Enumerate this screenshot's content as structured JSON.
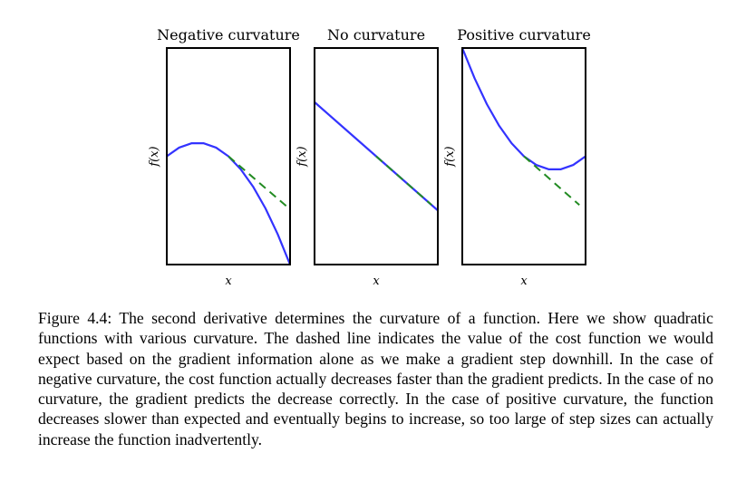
{
  "chart_data": [
    {
      "type": "line",
      "title": "Negative curvature",
      "xlabel": "x",
      "ylabel": "f(x)",
      "xlim": [
        0,
        1
      ],
      "ylim": [
        0,
        1
      ],
      "grid": false,
      "x": [
        0.0,
        0.1,
        0.2,
        0.3,
        0.4,
        0.5,
        0.6,
        0.7,
        0.8,
        0.9,
        1.0
      ],
      "series": [
        {
          "values": [
            0.5,
            0.54,
            0.56,
            0.56,
            0.54,
            0.5,
            0.44,
            0.36,
            0.26,
            0.14,
            0.0
          ],
          "color": "#3333ff",
          "style": "solid"
        },
        {
          "x": [
            0.5,
            0.97
          ],
          "values": [
            0.5,
            0.27
          ],
          "color": "#228b22",
          "style": "dashed"
        }
      ]
    },
    {
      "type": "line",
      "title": "No curvature",
      "xlabel": "x",
      "ylabel": "f(x)",
      "xlim": [
        0,
        1
      ],
      "ylim": [
        0,
        1
      ],
      "grid": false,
      "x": [
        0.0,
        1.0
      ],
      "series": [
        {
          "values": [
            0.75,
            0.25
          ],
          "color": "#3333ff",
          "style": "solid"
        },
        {
          "x": [
            0.5,
            0.95
          ],
          "values": [
            0.5,
            0.275
          ],
          "color": "#228b22",
          "style": "dashed"
        }
      ]
    },
    {
      "type": "line",
      "title": "Positive curvature",
      "xlabel": "x",
      "ylabel": "f(x)",
      "xlim": [
        0,
        1
      ],
      "ylim": [
        0,
        1
      ],
      "grid": false,
      "x": [
        0.0,
        0.1,
        0.2,
        0.3,
        0.4,
        0.5,
        0.6,
        0.7,
        0.8,
        0.9,
        1.0
      ],
      "series": [
        {
          "values": [
            1.0,
            0.86,
            0.74,
            0.64,
            0.56,
            0.5,
            0.46,
            0.44,
            0.44,
            0.46,
            0.5
          ],
          "color": "#3333ff",
          "style": "solid"
        },
        {
          "x": [
            0.5,
            0.95
          ],
          "values": [
            0.5,
            0.275
          ],
          "color": "#228b22",
          "style": "dashed"
        }
      ]
    }
  ],
  "caption": {
    "text": "Figure 4.4: The second derivative determines the curvature of a function. Here we show quadratic functions with various curvature. The dashed line indicates the value of the cost function we would expect based on the gradient information alone as we make a gradient step downhill. In the case of negative curvature, the cost function actually decreases faster than the gradient predicts. In the case of no curvature, the gradient predicts the decrease correctly. In the case of positive curvature, the function decreases slower than expected and eventually begins to increase, so too large of step sizes can actually increase the function inadvertently."
  }
}
